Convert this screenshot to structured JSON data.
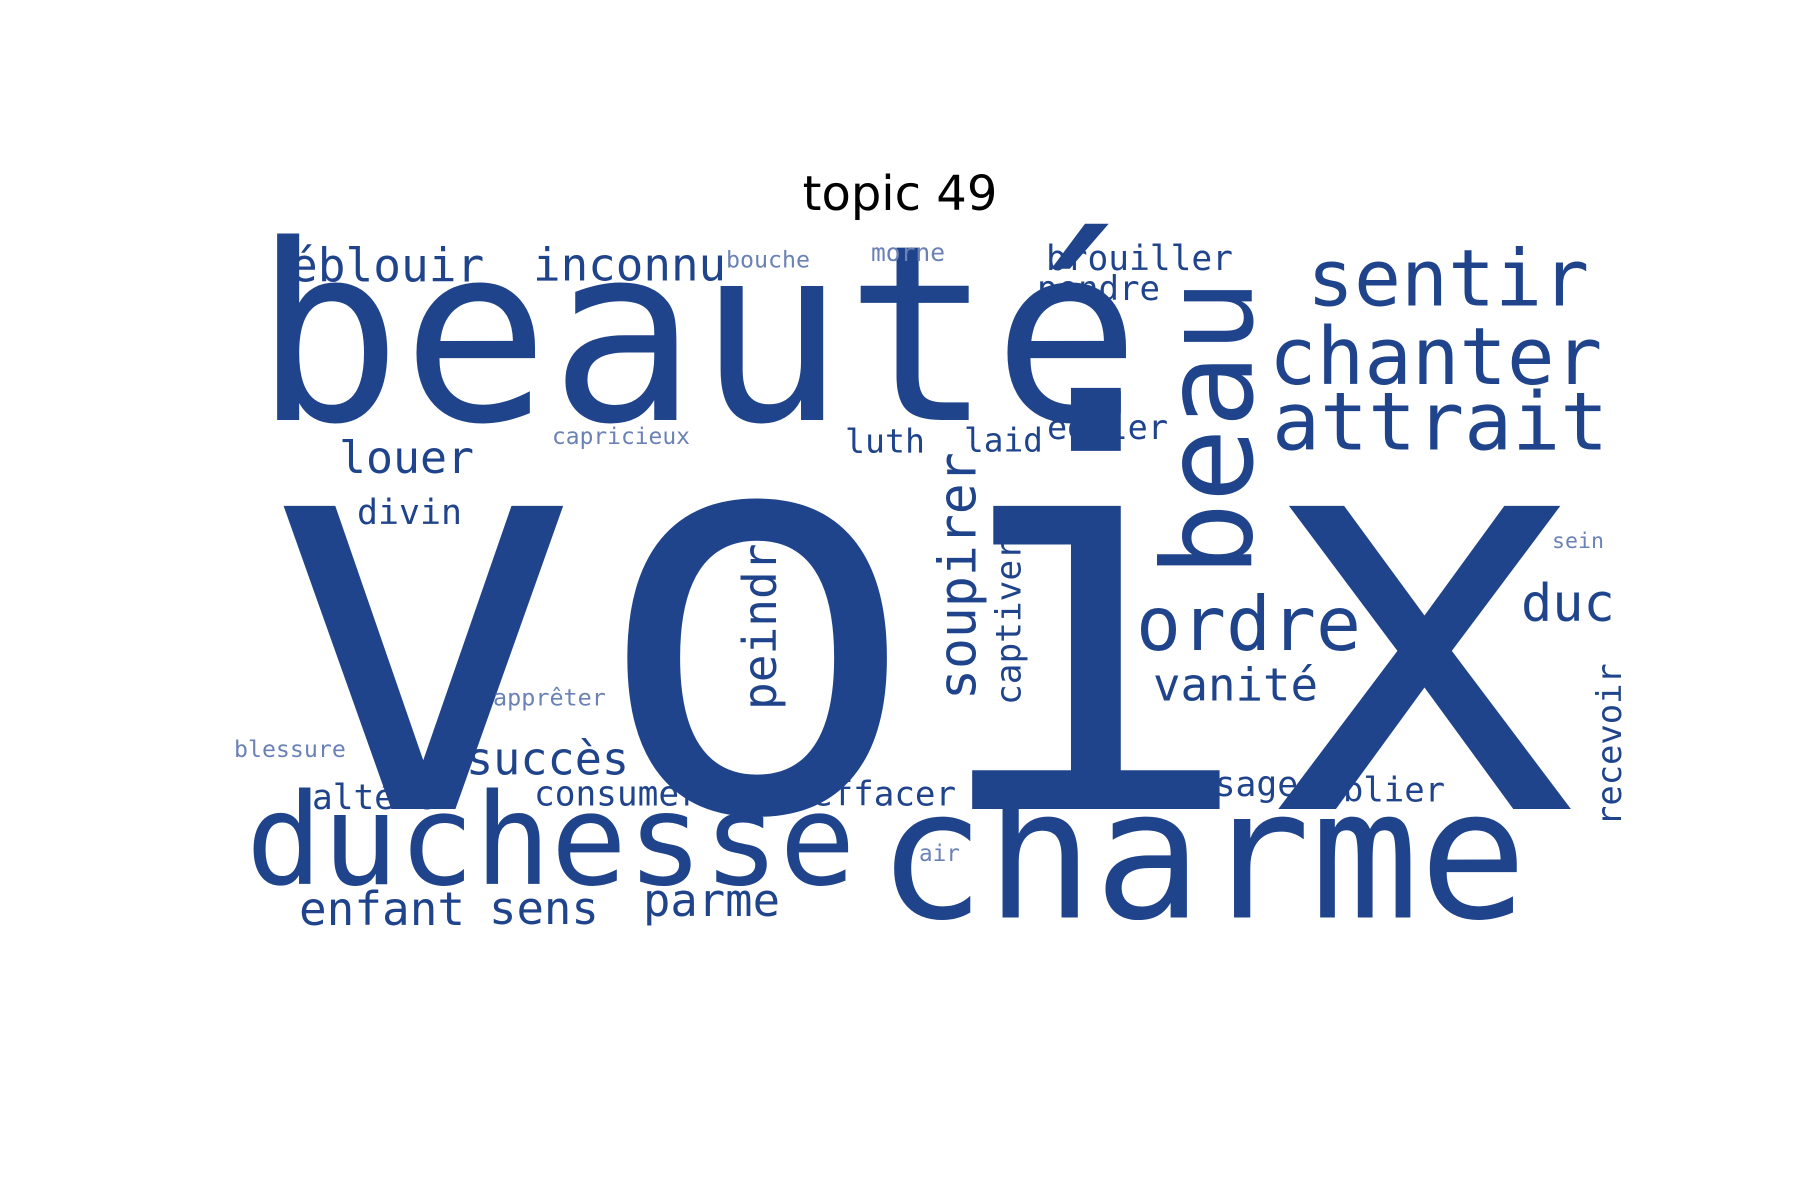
{
  "title": "topic 49",
  "colors": {
    "word": "#20448c",
    "faint": "#6b82b6",
    "background": "#ffffff"
  },
  "words": [
    {
      "id": "voix",
      "text": "voix",
      "orientation": "horizontal",
      "tone": "word"
    },
    {
      "id": "beaute",
      "text": "beauté",
      "orientation": "horizontal",
      "tone": "word"
    },
    {
      "id": "charme",
      "text": "charme",
      "orientation": "horizontal",
      "tone": "word"
    },
    {
      "id": "duchesse",
      "text": "duchesse",
      "orientation": "horizontal",
      "tone": "word"
    },
    {
      "id": "beau",
      "text": "beau",
      "orientation": "vertical",
      "tone": "word"
    },
    {
      "id": "sentir",
      "text": "sentir",
      "orientation": "horizontal",
      "tone": "word"
    },
    {
      "id": "chanter",
      "text": "chanter",
      "orientation": "horizontal",
      "tone": "word"
    },
    {
      "id": "attrait",
      "text": "attrait",
      "orientation": "horizontal",
      "tone": "word"
    },
    {
      "id": "ordre",
      "text": "ordre",
      "orientation": "horizontal",
      "tone": "word"
    },
    {
      "id": "duc",
      "text": "duc",
      "orientation": "horizontal",
      "tone": "word"
    },
    {
      "id": "eblouir",
      "text": "éblouir",
      "orientation": "horizontal",
      "tone": "word"
    },
    {
      "id": "inconnu",
      "text": "inconnu",
      "orientation": "horizontal",
      "tone": "word"
    },
    {
      "id": "louer",
      "text": "louer",
      "orientation": "horizontal",
      "tone": "word"
    },
    {
      "id": "succes",
      "text": "succès",
      "orientation": "horizontal",
      "tone": "word"
    },
    {
      "id": "enfant",
      "text": "enfant",
      "orientation": "horizontal",
      "tone": "word"
    },
    {
      "id": "sens",
      "text": "sens",
      "orientation": "horizontal",
      "tone": "word"
    },
    {
      "id": "parme",
      "text": "parme",
      "orientation": "horizontal",
      "tone": "word"
    },
    {
      "id": "vanite",
      "text": "vanité",
      "orientation": "horizontal",
      "tone": "word"
    },
    {
      "id": "soupirer",
      "text": "soupirer",
      "orientation": "vertical",
      "tone": "word"
    },
    {
      "id": "peindre",
      "text": "peindre",
      "orientation": "vertical",
      "tone": "word"
    },
    {
      "id": "captiver",
      "text": "captiver",
      "orientation": "vertical",
      "tone": "word"
    },
    {
      "id": "recevoir",
      "text": "recevoir",
      "orientation": "vertical",
      "tone": "word"
    },
    {
      "id": "divin",
      "text": "divin",
      "orientation": "horizontal",
      "tone": "word"
    },
    {
      "id": "luth",
      "text": "luth",
      "orientation": "horizontal",
      "tone": "word"
    },
    {
      "id": "laid",
      "text": "laid",
      "orientation": "horizontal",
      "tone": "word"
    },
    {
      "id": "egaler",
      "text": "égaler",
      "orientation": "horizontal",
      "tone": "word"
    },
    {
      "id": "brouiller",
      "text": "brouiller",
      "orientation": "horizontal",
      "tone": "word"
    },
    {
      "id": "pendre",
      "text": "pendre",
      "orientation": "horizontal",
      "tone": "word"
    },
    {
      "id": "alterer",
      "text": "altérer",
      "orientation": "horizontal",
      "tone": "word"
    },
    {
      "id": "consumer",
      "text": "consumer",
      "orientation": "horizontal",
      "tone": "word"
    },
    {
      "id": "effacer",
      "text": "effacer",
      "orientation": "horizontal",
      "tone": "word"
    },
    {
      "id": "passage",
      "text": "passage",
      "orientation": "horizontal",
      "tone": "word"
    },
    {
      "id": "oublier",
      "text": "oublier",
      "orientation": "horizontal",
      "tone": "word"
    },
    {
      "id": "capricieux",
      "text": "capricieux",
      "orientation": "horizontal",
      "tone": "faint"
    },
    {
      "id": "bouche",
      "text": "bouche",
      "orientation": "horizontal",
      "tone": "faint"
    },
    {
      "id": "morne",
      "text": "morne",
      "orientation": "horizontal",
      "tone": "faint"
    },
    {
      "id": "sein",
      "text": "sein",
      "orientation": "horizontal",
      "tone": "faint"
    },
    {
      "id": "appreter",
      "text": "apprêter",
      "orientation": "horizontal",
      "tone": "faint"
    },
    {
      "id": "blessure",
      "text": "blessure",
      "orientation": "horizontal",
      "tone": "faint"
    },
    {
      "id": "air",
      "text": "air",
      "orientation": "horizontal",
      "tone": "faint"
    }
  ]
}
